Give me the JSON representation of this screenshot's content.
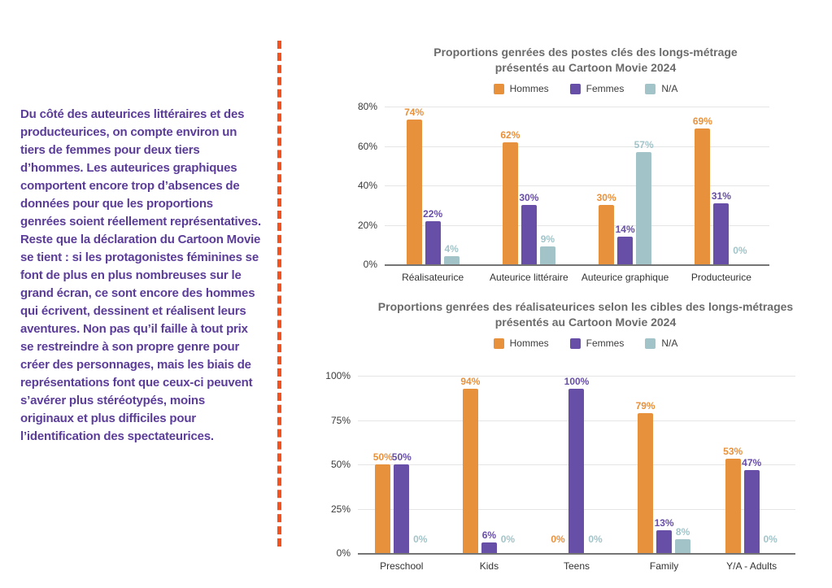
{
  "colors": {
    "hommes": "#E8913C",
    "femmes": "#674EA7",
    "na": "#A2C4C9",
    "divider_orange": "#F4511E",
    "body_text_purple": "#5B3D99",
    "chart_title_gray": "#6B6B6B",
    "axis_text": "#3C3C3C"
  },
  "left_text": {
    "paragraphs": [
      "Du côté des auteurices littéraires et des producteurices, on compte environ un tiers de femmes pour deux tiers d’hommes. Les auteurices graphiques comportent encore trop d’absences de données pour que les proportions genrées soient réellement représentatives.",
      "Reste que la déclaration du Cartoon Movie se tient : si les protagonistes féminines se font de plus en plus nombreuses sur le grand écran, ce sont encore des hommes qui écrivent, dessinent et réalisent leurs aventures. Non pas qu’il faille à tout prix se restreindre à son propre genre pour créer des personnages, mais les biais de représentations font que ceux-ci peuvent s’avérer plus stéréotypés, moins originaux et plus difficiles pour l’identification des spectateurices."
    ]
  },
  "chart_data": [
    {
      "type": "bar",
      "title": "Proportions genrées des postes clés des longs-métrage présentés au Cartoon Movie 2024",
      "title_lines": [
        "Proportions genrées des postes clés des longs-métrage",
        "présentés au Cartoon Movie 2024"
      ],
      "legend": [
        "Hommes",
        "Femmes",
        "N/A"
      ],
      "legend_position": "top",
      "categories": [
        "Réalisateurice",
        "Auteurice littéraire",
        "Auteurice graphique",
        "Producteurice"
      ],
      "series": [
        {
          "name": "Hommes",
          "values": [
            74,
            62,
            30,
            69
          ]
        },
        {
          "name": "Femmes",
          "values": [
            22,
            30,
            14,
            31
          ]
        },
        {
          "name": "N/A",
          "values": [
            4,
            9,
            57,
            0
          ]
        }
      ],
      "series_colors": [
        "#E8913C",
        "#674EA7",
        "#A2C4C9"
      ],
      "value_suffix": "%",
      "xlabel": "",
      "ylabel": "",
      "ylim": [
        0,
        80
      ],
      "yticks": [
        0,
        20,
        40,
        60,
        80
      ],
      "grid": true
    },
    {
      "type": "bar",
      "title": "Proportions genrées des réalisateurices selon les cibles des longs-métrages présentés au Cartoon Movie 2024",
      "title_lines": [
        "Proportions genrées des réalisateurices selon les cibles des longs-métrages",
        "présentés au Cartoon Movie 2024"
      ],
      "legend": [
        "Hommes",
        "Femmes",
        "N/A"
      ],
      "legend_position": "top",
      "categories": [
        "Preschool",
        "Kids",
        "Teens",
        "Family",
        "Y/A - Adults"
      ],
      "series": [
        {
          "name": "Hommes",
          "values": [
            50,
            94,
            0,
            79,
            53
          ]
        },
        {
          "name": "Femmes",
          "values": [
            50,
            6,
            100,
            13,
            47
          ]
        },
        {
          "name": "N/A",
          "values": [
            0,
            0,
            0,
            8,
            0
          ]
        }
      ],
      "series_colors": [
        "#E8913C",
        "#674EA7",
        "#A2C4C9"
      ],
      "value_suffix": "%",
      "xlabel": "",
      "ylabel": "",
      "ylim": [
        0,
        100
      ],
      "yticks": [
        0,
        25,
        50,
        75,
        100
      ],
      "grid": true
    }
  ]
}
